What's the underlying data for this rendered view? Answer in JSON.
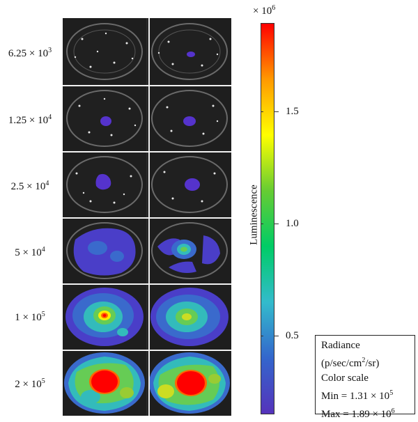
{
  "rows": [
    {
      "base": "6.25 × 10",
      "exp": "3"
    },
    {
      "base": "1.25 × 10",
      "exp": "4"
    },
    {
      "base": "2.5 × 10",
      "exp": "4"
    },
    {
      "base": "5 × 10",
      "exp": "4"
    },
    {
      "base": "1 × 10",
      "exp": "5"
    },
    {
      "base": "2 × 10",
      "exp": "5"
    }
  ],
  "colorbar": {
    "multiplier_base": "× 10",
    "multiplier_exp": "6",
    "axis_label": "Luminescence",
    "ticks": [
      "1.5",
      "1.0",
      "0.5"
    ],
    "colors": [
      "#ff0000",
      "#ff9900",
      "#ffff00",
      "#66cc33",
      "#00cc66",
      "#33bbcc",
      "#3366cc",
      "#5533bb"
    ]
  },
  "legend": {
    "title": "Radiance",
    "units": "(p/sec/cm",
    "units_exp": "2",
    "units_tail": "/sr)",
    "scale_label": "Color scale",
    "min_label": "Min = 1.31 × 10",
    "min_exp": "5",
    "max_label": "Max = 1.89 × 10",
    "max_exp": "6"
  }
}
